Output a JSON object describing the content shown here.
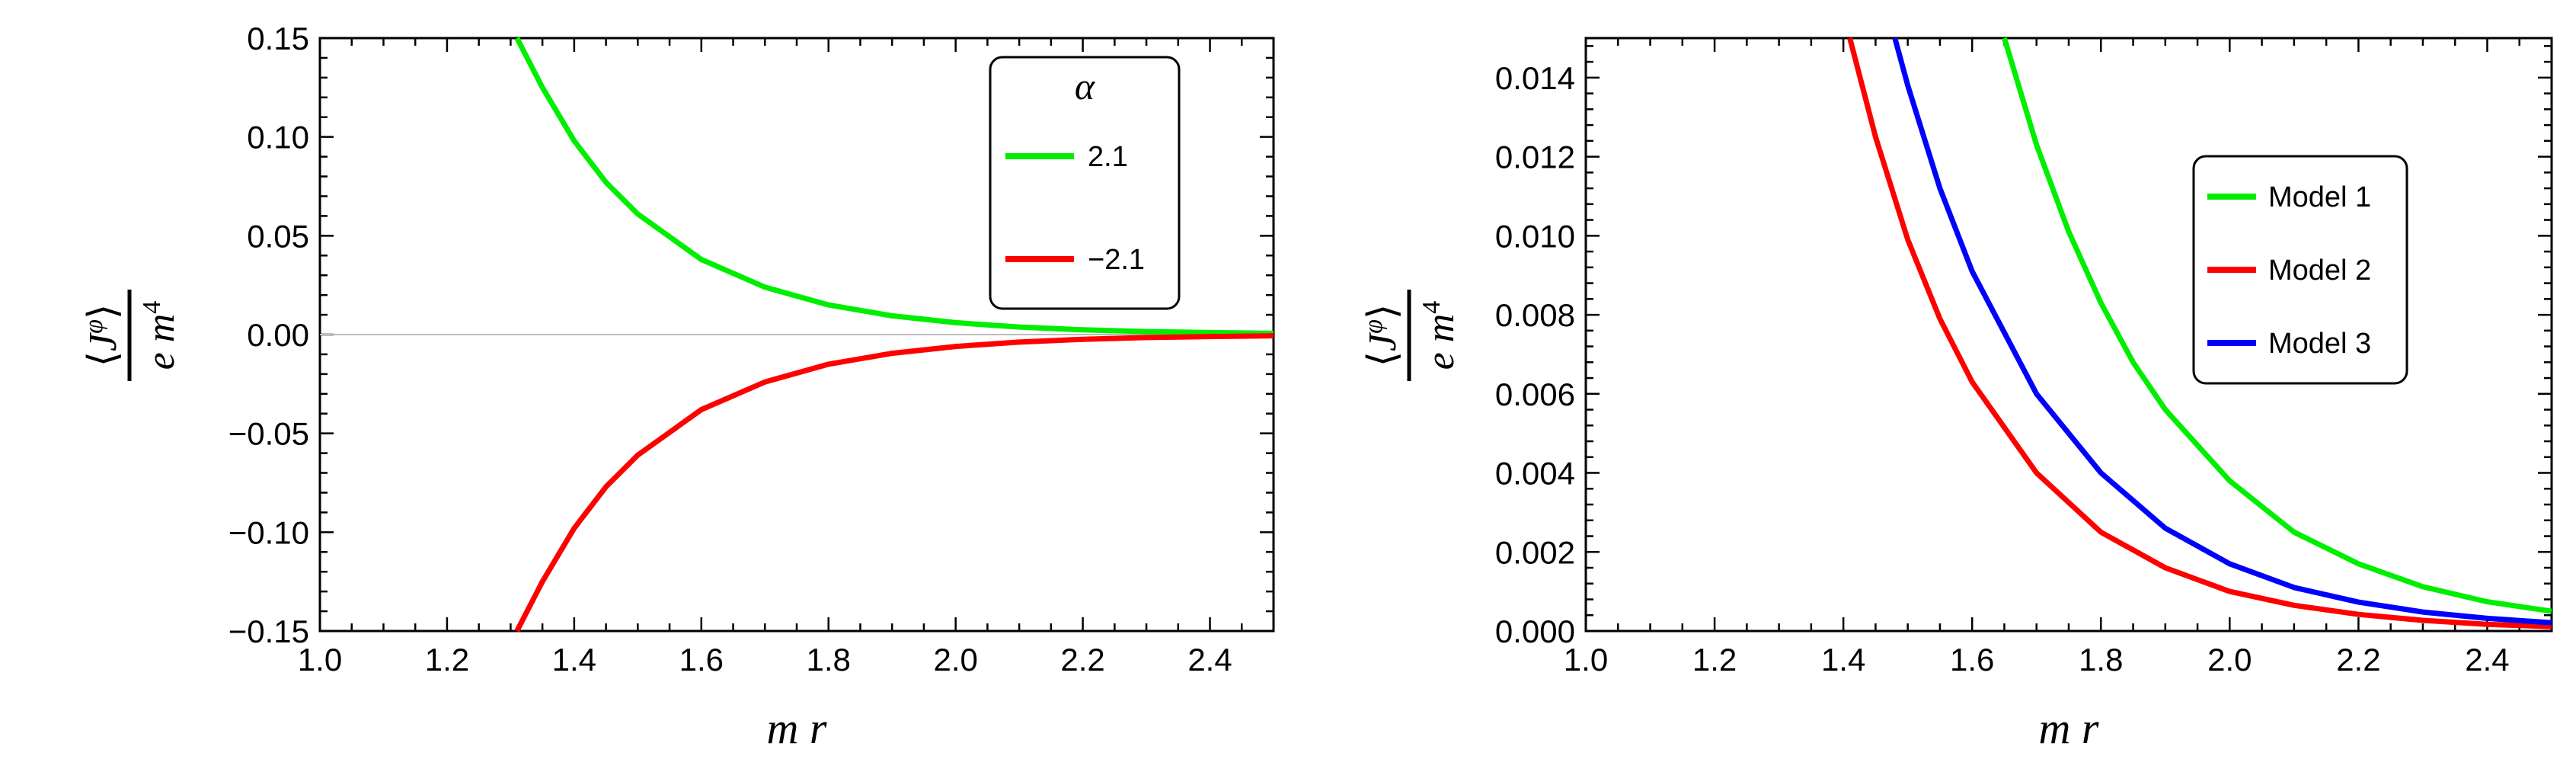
{
  "chart_data": [
    {
      "type": "line",
      "xlabel": "m r",
      "ylabel": {
        "numerator": "⟨J^φ⟩",
        "numerator_main": "J",
        "numerator_sup": "φ",
        "denominator_main": "e m",
        "denominator_sup": "4"
      },
      "xlim": [
        1.0,
        2.5
      ],
      "ylim": [
        -0.15,
        0.15
      ],
      "x_ticks": [
        "1.0",
        "1.2",
        "1.4",
        "1.6",
        "1.8",
        "2.0",
        "2.2",
        "2.4"
      ],
      "x_tick_values": [
        1.0,
        1.2,
        1.4,
        1.6,
        1.8,
        2.0,
        2.2,
        2.4
      ],
      "y_ticks": [
        "0.15",
        "0.10",
        "0.05",
        "0.00",
        "−0.05",
        "−0.10",
        "−0.15"
      ],
      "y_tick_values": [
        0.15,
        0.1,
        0.05,
        0.0,
        -0.05,
        -0.1,
        -0.15
      ],
      "zero_line": true,
      "legend": {
        "title": "α",
        "position": "top-right"
      },
      "series": [
        {
          "name": "2.1",
          "color": "#00ee00",
          "x": [
            1.31,
            1.35,
            1.4,
            1.45,
            1.5,
            1.6,
            1.7,
            1.8,
            1.9,
            2.0,
            2.1,
            2.2,
            2.3,
            2.4,
            2.5
          ],
          "y": [
            0.15,
            0.125,
            0.098,
            0.077,
            0.061,
            0.038,
            0.024,
            0.015,
            0.0095,
            0.006,
            0.0038,
            0.0024,
            0.0015,
            0.001,
            0.0006
          ]
        },
        {
          "name": "−2.1",
          "color": "#ff0000",
          "x": [
            1.31,
            1.35,
            1.4,
            1.45,
            1.5,
            1.6,
            1.7,
            1.8,
            1.9,
            2.0,
            2.1,
            2.2,
            2.3,
            2.4,
            2.5
          ],
          "y": [
            -0.15,
            -0.125,
            -0.098,
            -0.077,
            -0.061,
            -0.038,
            -0.024,
            -0.015,
            -0.0095,
            -0.006,
            -0.0038,
            -0.0024,
            -0.0015,
            -0.001,
            -0.0006
          ]
        }
      ]
    },
    {
      "type": "line",
      "xlabel": "m r",
      "ylabel": {
        "numerator": "⟨J^φ⟩",
        "numerator_main": "J",
        "numerator_sup": "φ",
        "denominator_main": "e m",
        "denominator_sup": "4"
      },
      "xlim": [
        1.0,
        2.5
      ],
      "ylim": [
        0.0,
        0.015
      ],
      "x_ticks": [
        "1.0",
        "1.2",
        "1.4",
        "1.6",
        "1.8",
        "2.0",
        "2.2",
        "2.4"
      ],
      "x_tick_values": [
        1.0,
        1.2,
        1.4,
        1.6,
        1.8,
        2.0,
        2.2,
        2.4
      ],
      "y_ticks": [
        "0.014",
        "0.012",
        "0.010",
        "0.008",
        "0.006",
        "0.004",
        "0.002",
        "0.000"
      ],
      "y_tick_values": [
        0.014,
        0.012,
        0.01,
        0.008,
        0.006,
        0.004,
        0.002,
        0.0
      ],
      "zero_line": false,
      "legend": {
        "title": "",
        "position": "center-right"
      },
      "series": [
        {
          "name": "Model 1",
          "color": "#00ee00",
          "x": [
            1.65,
            1.7,
            1.75,
            1.8,
            1.85,
            1.9,
            2.0,
            2.1,
            2.2,
            2.3,
            2.4,
            2.5
          ],
          "y": [
            0.015,
            0.0123,
            0.0101,
            0.0083,
            0.0068,
            0.0056,
            0.0038,
            0.0025,
            0.0017,
            0.00112,
            0.00074,
            0.0005
          ]
        },
        {
          "name": "Model 2",
          "color": "#ff0000",
          "x": [
            1.41,
            1.45,
            1.5,
            1.55,
            1.6,
            1.7,
            1.8,
            1.9,
            2.0,
            2.1,
            2.2,
            2.3,
            2.4,
            2.5
          ],
          "y": [
            0.015,
            0.0125,
            0.0099,
            0.0079,
            0.0063,
            0.004,
            0.0025,
            0.0016,
            0.001,
            0.00065,
            0.00042,
            0.00027,
            0.00017,
            0.00011
          ]
        },
        {
          "name": "Model 3",
          "color": "#0000ff",
          "x": [
            1.48,
            1.5,
            1.55,
            1.6,
            1.7,
            1.8,
            1.9,
            2.0,
            2.1,
            2.2,
            2.3,
            2.4,
            2.5
          ],
          "y": [
            0.015,
            0.0138,
            0.0112,
            0.0091,
            0.006,
            0.004,
            0.0026,
            0.0017,
            0.0011,
            0.00073,
            0.00048,
            0.00032,
            0.00021
          ]
        }
      ]
    }
  ]
}
